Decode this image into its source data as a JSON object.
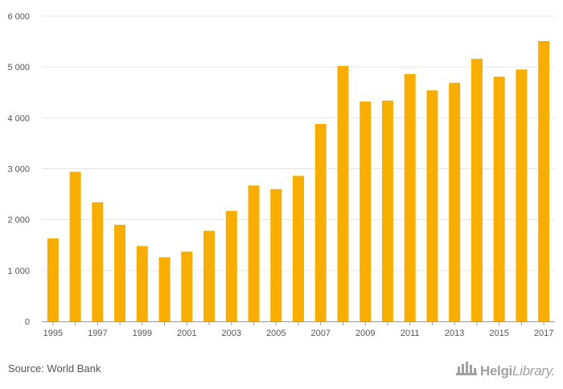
{
  "chart_data": {
    "type": "bar",
    "title": "",
    "xlabel": "",
    "ylabel": "",
    "categories": [
      "1995",
      "1996",
      "1997",
      "1998",
      "1999",
      "2000",
      "2001",
      "2002",
      "2003",
      "2004",
      "2005",
      "2006",
      "2007",
      "2008",
      "2009",
      "2010",
      "2011",
      "2012",
      "2013",
      "2014",
      "2015",
      "2016",
      "2017"
    ],
    "x_tick_labels": [
      "1995",
      "1997",
      "1999",
      "2001",
      "2003",
      "2005",
      "2007",
      "2009",
      "2011",
      "2013",
      "2015",
      "2017"
    ],
    "values": [
      1630,
      2940,
      2340,
      1900,
      1480,
      1260,
      1370,
      1780,
      2170,
      2670,
      2600,
      2860,
      3880,
      5020,
      4320,
      4340,
      4860,
      4540,
      4690,
      5160,
      4810,
      4950,
      5510
    ],
    "ylim": [
      0,
      6000
    ],
    "y_ticks": [
      0,
      1000,
      2000,
      3000,
      4000,
      5000,
      6000
    ],
    "y_tick_labels": [
      "0",
      "1 000",
      "2 000",
      "3 000",
      "4 000",
      "5 000",
      "6 000"
    ],
    "grid": true,
    "legend": "none",
    "bar_color": "#F7AE00",
    "grid_color": "#E6E6E6"
  },
  "footer": {
    "source": "Source: World Bank",
    "brand_bold": "Helgi",
    "brand_light": "Library."
  }
}
